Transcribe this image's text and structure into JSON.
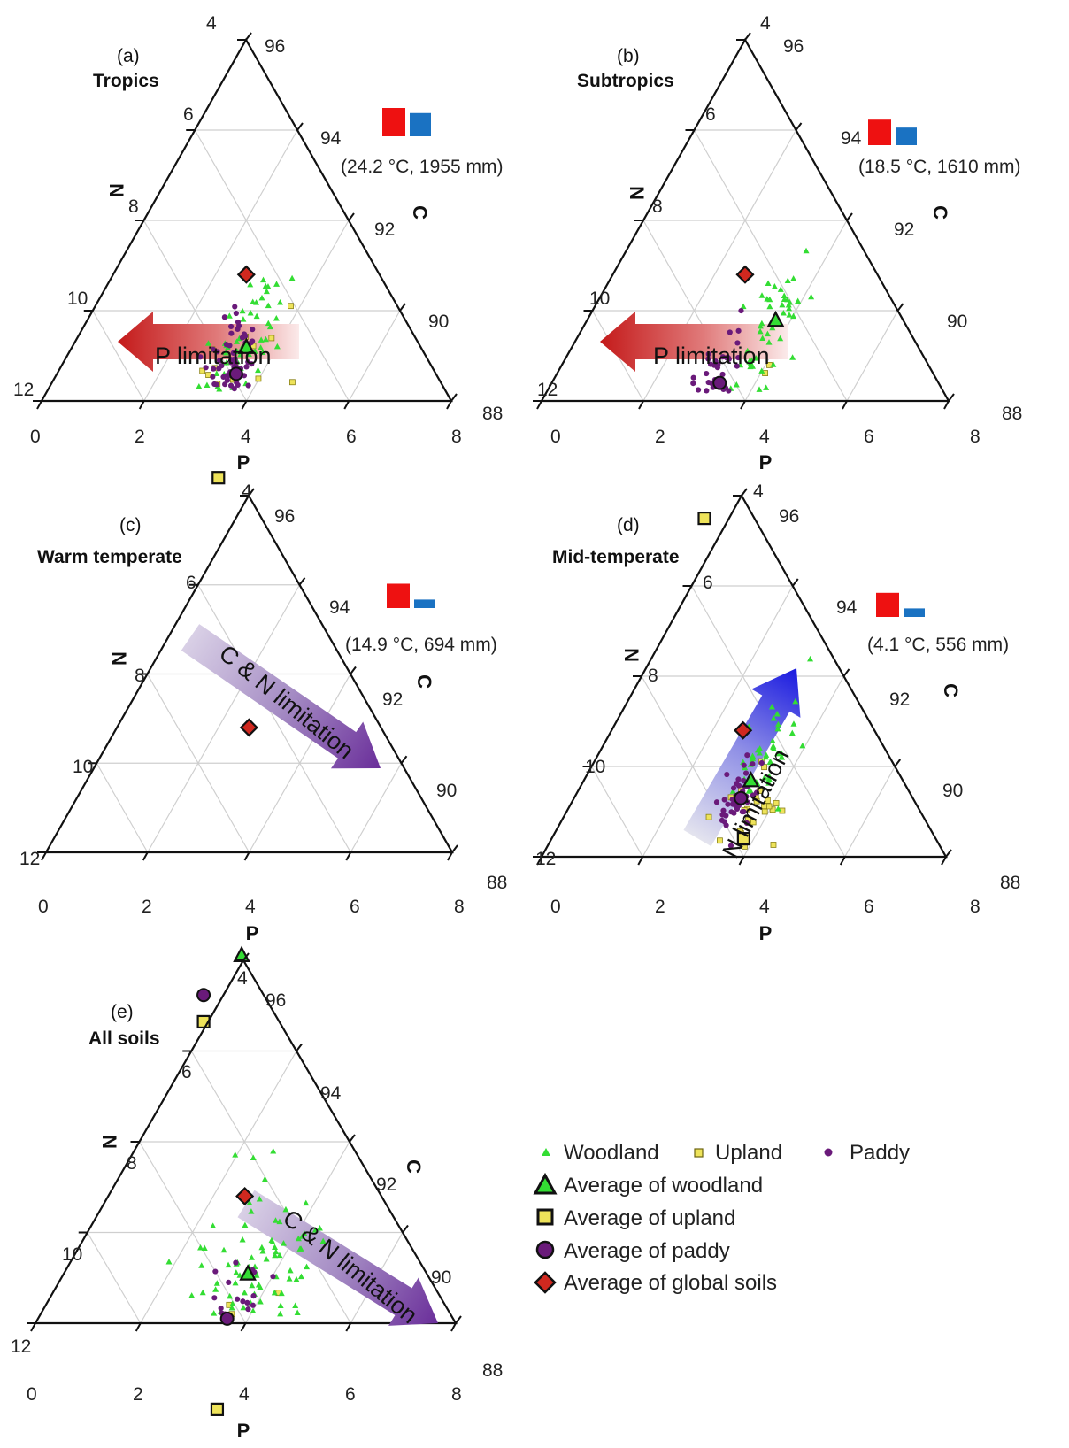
{
  "colors": {
    "woodland": "#33dd33",
    "upland": "#eee35a",
    "paddy": "#6a1a7a",
    "global": "#d0281f",
    "temp_bar": "#ee1111",
    "precip_bar": "#1a72c2",
    "arrow_red": "#c41a1a",
    "arrow_purple": "#6a2e9a",
    "arrow_blue": "#1a1ae0",
    "grid": "#cfcfcf",
    "frame": "#111111"
  },
  "legend": {
    "woodland": "Woodland",
    "upland": "Upland",
    "paddy": "Paddy",
    "avg_woodland": "Average of woodland",
    "avg_upland": "Average of upland",
    "avg_paddy": "Average of paddy",
    "avg_global": "Average of global soils"
  },
  "chart_data": [
    {
      "type": "scatter",
      "subtype": "ternary",
      "panel": "(a)",
      "title": "Tropics",
      "climate": "(24.2 °C, 1955 mm)",
      "temp_bar": 1.0,
      "precip_bar": 0.82,
      "axes": {
        "P": {
          "label": "P",
          "ticks": [
            "0",
            "2",
            "4",
            "6",
            "8"
          ]
        },
        "C": {
          "label": "C",
          "ticks": [
            "88",
            "90",
            "92",
            "94",
            "96"
          ]
        },
        "N": {
          "label": "N",
          "ticks": [
            "4",
            "6",
            "8",
            "10",
            "12"
          ]
        }
      },
      "arrow": {
        "label": "P limitation",
        "direction": "left"
      },
      "averages": {
        "woodland": {
          "P": 3.4,
          "N": 7.4
        },
        "upland": {
          "P": 4.3,
          "N": 9.4
        },
        "paddy": {
          "P": 3.5,
          "N": 7.9
        },
        "global": {
          "P": 2.6,
          "N": 6.6
        }
      },
      "cluster": {
        "woodland": {
          "P": 3.3,
          "N": 7.2,
          "sp": 0.55,
          "sn": 1.2,
          "n": 55
        },
        "upland": {
          "P": 4.0,
          "N": 8.6,
          "sp": 1.0,
          "sn": 1.6,
          "n": 45
        },
        "paddy": {
          "P": 3.3,
          "N": 7.9,
          "sp": 0.5,
          "sn": 0.8,
          "n": 65
        }
      }
    },
    {
      "type": "scatter",
      "subtype": "ternary",
      "panel": "(b)",
      "title": "Subtropics",
      "climate": "(18.5 °C, 1610 mm)",
      "temp_bar": 0.9,
      "precip_bar": 0.62,
      "axes": {
        "P": {
          "label": "P",
          "ticks": [
            "0",
            "2",
            "4",
            "6",
            "8"
          ]
        },
        "C": {
          "label": "C",
          "ticks": [
            "88",
            "90",
            "92",
            "94",
            "96"
          ]
        },
        "N": {
          "label": "N",
          "ticks": [
            "4",
            "6",
            "8",
            "10",
            "12"
          ]
        }
      },
      "arrow": {
        "label": "P limitation",
        "direction": "left"
      },
      "averages": {
        "woodland": {
          "P": 3.7,
          "N": 6.5
        },
        "upland": {
          "P": 4.5,
          "N": 10.1
        },
        "paddy": {
          "P": 3.3,
          "N": 8.3
        },
        "global": {
          "P": 2.6,
          "N": 6.6
        }
      },
      "cluster": {
        "woodland": {
          "P": 3.7,
          "N": 6.8,
          "sp": 0.45,
          "sn": 1.3,
          "n": 50
        },
        "upland": {
          "P": 4.7,
          "N": 9.2,
          "sp": 1.0,
          "sn": 1.5,
          "n": 45
        },
        "paddy": {
          "P": 3.2,
          "N": 8.3,
          "sp": 0.45,
          "sn": 0.6,
          "n": 45
        }
      }
    },
    {
      "type": "scatter",
      "subtype": "ternary",
      "panel": "(c)",
      "title": "Warm temperate",
      "climate": "(14.9 °C, 694 mm)",
      "temp_bar": 0.86,
      "precip_bar": 0.3,
      "axes": {
        "P": {
          "label": "P",
          "ticks": [
            "0",
            "2",
            "4",
            "6",
            "8"
          ]
        },
        "C": {
          "label": "C",
          "ticks": [
            "88",
            "90",
            "92",
            "94",
            "96"
          ]
        },
        "N": {
          "label": "N",
          "ticks": [
            "4",
            "6",
            "8",
            "10",
            "12"
          ]
        }
      },
      "arrow": {
        "label": "C & N limitation",
        "direction": "down-right"
      },
      "averages": {
        "woodland": {
          "P": 5.0,
          "N": 9.3
        },
        "upland": {
          "P": 5.0,
          "N": 10.8
        },
        "paddy": {
          "P": 4.7,
          "N": 10.5
        },
        "global": {
          "P": 2.6,
          "N": 6.6
        }
      },
      "cluster": {
        "woodland": {
          "P": 4.9,
          "N": 9.6,
          "sp": 0.8,
          "sn": 1.2,
          "n": 60
        },
        "upland": {
          "P": 5.0,
          "N": 11.0,
          "sp": 0.5,
          "sn": 0.6,
          "n": 45
        },
        "paddy": {
          "P": 4.6,
          "N": 10.5,
          "sp": 0.45,
          "sn": 0.7,
          "n": 55
        }
      }
    },
    {
      "type": "scatter",
      "subtype": "ternary",
      "panel": "(d)",
      "title": "Mid-temperate",
      "climate": "(4.1 °C, 556 mm)",
      "temp_bar": 0.85,
      "precip_bar": 0.3,
      "axes": {
        "P": {
          "label": "P",
          "ticks": [
            "0",
            "2",
            "4",
            "6",
            "8"
          ]
        },
        "C": {
          "label": "C",
          "ticks": [
            "88",
            "90",
            "92",
            "94",
            "96"
          ]
        },
        "N": {
          "label": "N",
          "ticks": [
            "4",
            "6",
            "8",
            "10",
            "12"
          ]
        }
      },
      "arrow": {
        "label": "N limitation",
        "direction": "up-right"
      },
      "averages": {
        "woodland": {
          "P": 3.3,
          "N": 7.0
        },
        "upland": {
          "P": 3.8,
          "N": 7.8
        },
        "paddy": {
          "P": 3.3,
          "N": 7.4
        },
        "global": {
          "P": 2.6,
          "N": 6.6
        }
      },
      "cluster": {
        "woodland": {
          "P": 3.3,
          "N": 6.4,
          "sp": 0.45,
          "sn": 0.8,
          "n": 45
        },
        "upland": {
          "P": 3.9,
          "N": 7.7,
          "sp": 0.6,
          "sn": 0.9,
          "n": 40
        },
        "paddy": {
          "P": 3.2,
          "N": 7.4,
          "sp": 0.35,
          "sn": 0.6,
          "n": 45
        }
      }
    },
    {
      "type": "scatter",
      "subtype": "ternary",
      "panel": "(e)",
      "title": "All soils",
      "climate": "",
      "axes": {
        "P": {
          "label": "P",
          "ticks": [
            "0",
            "2",
            "4",
            "6",
            "8"
          ]
        },
        "C": {
          "label": "C",
          "ticks": [
            "88",
            "90",
            "92",
            "94",
            "96"
          ]
        },
        "N": {
          "label": "N",
          "ticks": [
            "4",
            "6",
            "8",
            "10",
            "12"
          ]
        }
      },
      "arrow": {
        "label": "C & N limitation",
        "direction": "down-right"
      },
      "averages": {
        "woodland": {
          "P": 3.5,
          "N": 7.4
        },
        "upland": {
          "P": 4.4,
          "N": 9.5
        },
        "paddy": {
          "P": 3.6,
          "N": 8.3
        },
        "global": {
          "P": 2.6,
          "N": 6.6
        }
      },
      "cluster": {
        "woodland": {
          "P": 3.6,
          "N": 7.6,
          "sp": 1.1,
          "sn": 1.8,
          "n": 120
        },
        "upland": {
          "P": 4.4,
          "N": 9.6,
          "sp": 0.9,
          "sn": 1.5,
          "n": 110
        },
        "paddy": {
          "P": 3.8,
          "N": 9.0,
          "sp": 0.7,
          "sn": 1.3,
          "n": 150
        }
      }
    }
  ]
}
